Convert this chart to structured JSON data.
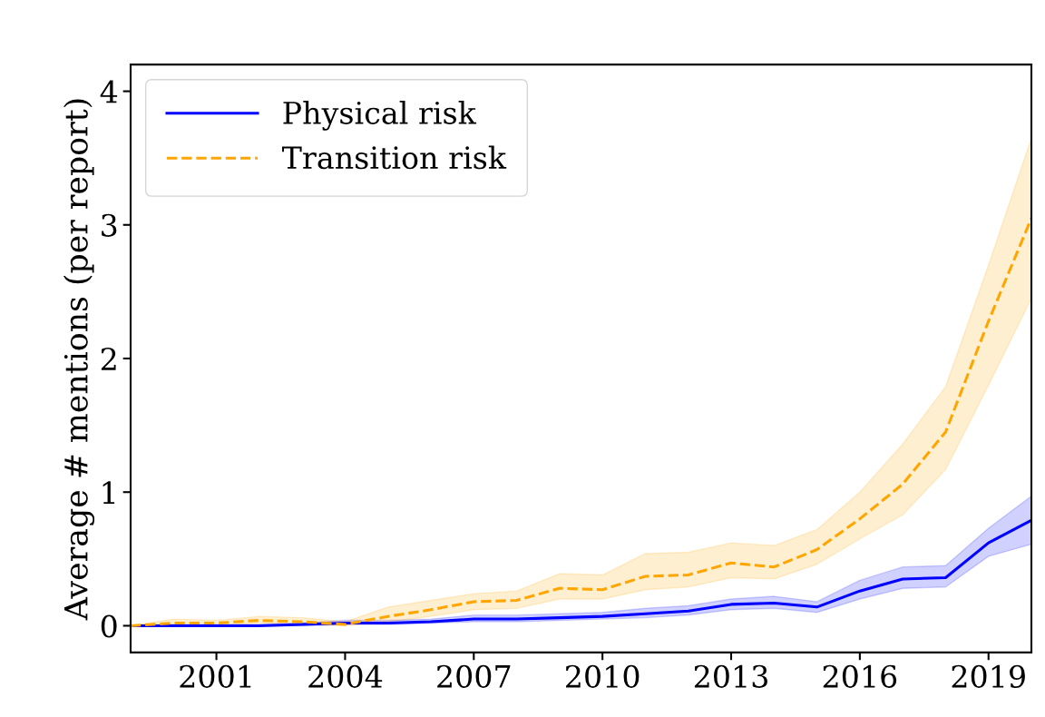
{
  "chart_data": {
    "type": "line",
    "ylabel": "Average # mentions (per report)",
    "x": [
      1999,
      2000,
      2001,
      2002,
      2003,
      2004,
      2005,
      2006,
      2007,
      2008,
      2009,
      2010,
      2011,
      2012,
      2013,
      2014,
      2015,
      2016,
      2017,
      2018,
      2019,
      2020
    ],
    "series": [
      {
        "name": "Physical risk",
        "color": "#0000ff",
        "line_style": "solid",
        "values": [
          0,
          0,
          0,
          0,
          0.01,
          0.02,
          0.02,
          0.03,
          0.05,
          0.05,
          0.06,
          0.07,
          0.09,
          0.11,
          0.16,
          0.17,
          0.14,
          0.26,
          0.35,
          0.36,
          0.62,
          0.79
        ],
        "lower": [
          0,
          0,
          0,
          0,
          0,
          0.01,
          0.01,
          0.02,
          0.03,
          0.03,
          0.04,
          0.05,
          0.06,
          0.08,
          0.12,
          0.13,
          0.1,
          0.2,
          0.28,
          0.29,
          0.52,
          0.61
        ],
        "upper": [
          0,
          0.01,
          0.01,
          0.01,
          0.02,
          0.04,
          0.04,
          0.05,
          0.08,
          0.08,
          0.09,
          0.1,
          0.13,
          0.15,
          0.2,
          0.22,
          0.18,
          0.34,
          0.44,
          0.45,
          0.73,
          0.97
        ]
      },
      {
        "name": "Transition risk",
        "color": "#ffa500",
        "line_style": "dashed",
        "values": [
          0,
          0.02,
          0.02,
          0.04,
          0.03,
          0.01,
          0.07,
          0.12,
          0.18,
          0.19,
          0.28,
          0.27,
          0.37,
          0.38,
          0.47,
          0.44,
          0.57,
          0.8,
          1.06,
          1.45,
          2.28,
          3.05
        ],
        "lower": [
          0,
          0,
          0,
          0.02,
          0.01,
          0,
          0.03,
          0.07,
          0.12,
          0.13,
          0.2,
          0.2,
          0.27,
          0.29,
          0.36,
          0.35,
          0.46,
          0.65,
          0.83,
          1.17,
          1.8,
          2.45
        ],
        "upper": [
          0,
          0.05,
          0.04,
          0.07,
          0.06,
          0.03,
          0.14,
          0.19,
          0.24,
          0.26,
          0.39,
          0.38,
          0.54,
          0.55,
          0.62,
          0.6,
          0.72,
          1.0,
          1.36,
          1.79,
          2.7,
          3.65
        ]
      }
    ],
    "xlim": [
      1999,
      2020
    ],
    "xticks": [
      2001,
      2004,
      2007,
      2010,
      2013,
      2016,
      2019
    ],
    "ylim": [
      -0.2,
      4.2
    ],
    "yticks": [
      0,
      1,
      2,
      3,
      4
    ],
    "grid": false,
    "legend": "top left"
  }
}
